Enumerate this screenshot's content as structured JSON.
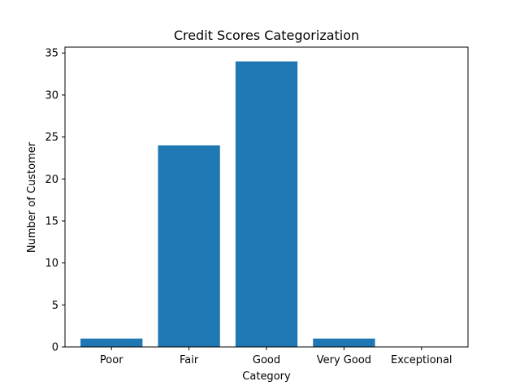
{
  "chart_data": {
    "type": "bar",
    "title": "Credit Scores Categorization",
    "xlabel": "Category",
    "ylabel": "Number of Customer",
    "categories": [
      "Poor",
      "Fair",
      "Good",
      "Very Good",
      "Exceptional"
    ],
    "values": [
      1,
      24,
      34,
      1,
      0
    ],
    "ylim": [
      0,
      35.7
    ],
    "yticks": [
      0,
      5,
      10,
      15,
      20,
      25,
      30,
      35
    ],
    "bar_color": "#1f77b4",
    "grid": false,
    "legend": "none"
  }
}
